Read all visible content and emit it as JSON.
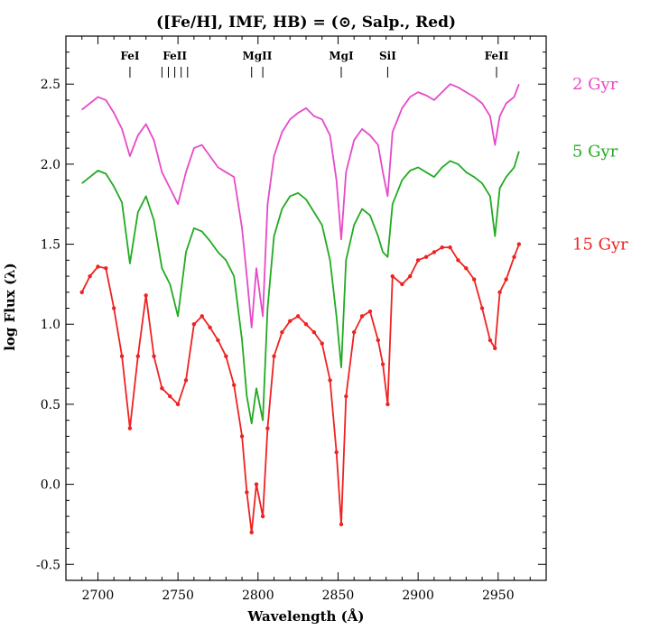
{
  "chart_data": {
    "type": "line",
    "title": "([Fe/H], IMF, HB) = (⊙, Salp., Red)",
    "xlabel": "Wavelength (Å)",
    "ylabel": "log Flux (λ)",
    "xlim": [
      2680,
      2980
    ],
    "ylim": [
      -0.6,
      2.8
    ],
    "xticks": [
      2700,
      2750,
      2800,
      2850,
      2900,
      2950
    ],
    "yticks": [
      -0.5,
      0.0,
      0.5,
      1.0,
      1.5,
      2.0,
      2.5
    ],
    "grid": false,
    "line_markers": [
      {
        "label": "FeI",
        "x": [
          2720
        ]
      },
      {
        "label": "FeII",
        "x": [
          2740,
          2744,
          2748,
          2752,
          2756
        ]
      },
      {
        "label": "MgII",
        "x": [
          2796,
          2803
        ]
      },
      {
        "label": "MgI",
        "x": [
          2852
        ]
      },
      {
        "label": "SiI",
        "x": [
          2881
        ]
      },
      {
        "label": "FeII",
        "x": [
          2949
        ]
      }
    ],
    "x": [
      2690,
      2695,
      2700,
      2705,
      2710,
      2715,
      2720,
      2725,
      2730,
      2735,
      2740,
      2745,
      2750,
      2755,
      2760,
      2765,
      2770,
      2775,
      2780,
      2785,
      2790,
      2793,
      2796,
      2799,
      2803,
      2806,
      2810,
      2815,
      2820,
      2825,
      2830,
      2835,
      2840,
      2845,
      2849,
      2852,
      2855,
      2860,
      2865,
      2870,
      2875,
      2878,
      2881,
      2884,
      2890,
      2895,
      2900,
      2905,
      2910,
      2915,
      2920,
      2925,
      2930,
      2935,
      2940,
      2945,
      2948,
      2951,
      2955,
      2960,
      2963
    ],
    "series": [
      {
        "name": "2 Gyr",
        "color": "#e64ac8",
        "values": [
          2.34,
          2.38,
          2.42,
          2.4,
          2.32,
          2.22,
          2.05,
          2.18,
          2.25,
          2.15,
          1.95,
          1.85,
          1.75,
          1.95,
          2.1,
          2.12,
          2.05,
          1.98,
          1.95,
          1.92,
          1.6,
          1.3,
          0.98,
          1.35,
          1.05,
          1.75,
          2.05,
          2.2,
          2.28,
          2.32,
          2.35,
          2.3,
          2.28,
          2.18,
          1.9,
          1.53,
          1.95,
          2.15,
          2.22,
          2.18,
          2.12,
          1.95,
          1.8,
          2.2,
          2.35,
          2.42,
          2.45,
          2.43,
          2.4,
          2.45,
          2.5,
          2.48,
          2.45,
          2.42,
          2.38,
          2.3,
          2.12,
          2.3,
          2.38,
          2.42,
          2.5
        ]
      },
      {
        "name": "5 Gyr",
        "color": "#22aa22",
        "values": [
          1.88,
          1.92,
          1.96,
          1.94,
          1.86,
          1.76,
          1.38,
          1.7,
          1.8,
          1.65,
          1.35,
          1.25,
          1.05,
          1.45,
          1.6,
          1.58,
          1.52,
          1.45,
          1.4,
          1.3,
          0.9,
          0.55,
          0.38,
          0.6,
          0.4,
          1.1,
          1.55,
          1.72,
          1.8,
          1.82,
          1.78,
          1.7,
          1.62,
          1.4,
          1.05,
          0.73,
          1.4,
          1.62,
          1.72,
          1.68,
          1.55,
          1.45,
          1.42,
          1.75,
          1.9,
          1.96,
          1.98,
          1.95,
          1.92,
          1.98,
          2.02,
          2.0,
          1.95,
          1.92,
          1.88,
          1.8,
          1.55,
          1.85,
          1.92,
          1.98,
          2.08
        ]
      },
      {
        "name": "15 Gyr",
        "color": "#ee2222",
        "values": [
          1.2,
          1.3,
          1.36,
          1.35,
          1.1,
          0.8,
          0.35,
          0.8,
          1.18,
          0.8,
          0.6,
          0.55,
          0.5,
          0.65,
          1.0,
          1.05,
          0.98,
          0.9,
          0.8,
          0.62,
          0.3,
          -0.05,
          -0.3,
          0.0,
          -0.2,
          0.35,
          0.8,
          0.95,
          1.02,
          1.05,
          1.0,
          0.95,
          0.88,
          0.65,
          0.2,
          -0.25,
          0.55,
          0.95,
          1.05,
          1.08,
          0.9,
          0.75,
          0.5,
          1.3,
          1.25,
          1.3,
          1.4,
          1.42,
          1.45,
          1.48,
          1.48,
          1.4,
          1.35,
          1.28,
          1.1,
          0.9,
          0.85,
          1.2,
          1.28,
          1.42,
          1.5
        ]
      }
    ]
  }
}
